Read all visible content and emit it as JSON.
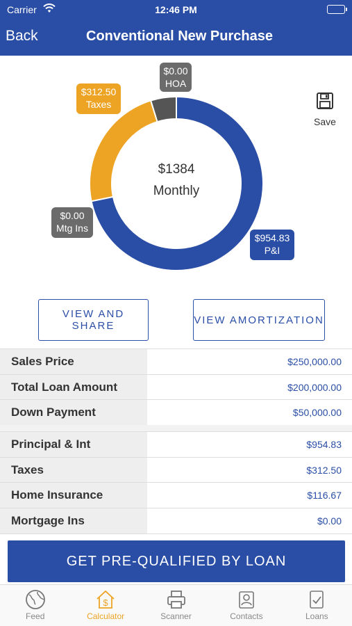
{
  "status_bar": {
    "carrier": "Carrier",
    "time": "12:46 PM"
  },
  "nav": {
    "back_label": "Back",
    "title": "Conventional New Purchase"
  },
  "chart_data": {
    "type": "pie",
    "title": "",
    "center_amount": "$1384",
    "center_label": "Monthly",
    "categories": [
      "P&I",
      "Taxes",
      "HOA",
      "Mtg Ins"
    ],
    "values": [
      954.83,
      312.5,
      0.0,
      0.0
    ],
    "value_labels": [
      "$954.83",
      "$312.50",
      "$0.00",
      "$0.00"
    ],
    "colors": [
      "#2a4ea6",
      "#eda324",
      "#6b6b6b",
      "#555555"
    ]
  },
  "save_label": "Save",
  "buttons": {
    "view_share": "VIEW AND SHARE",
    "view_amortization": "VIEW AMORTIZATION"
  },
  "loan_table": [
    {
      "label": "Sales Price",
      "value": "$250,000.00"
    },
    {
      "label": "Total Loan Amount",
      "value": "$200,000.00"
    },
    {
      "label": "Down Payment",
      "value": "$50,000.00"
    }
  ],
  "payment_table": [
    {
      "label": "Principal & Int",
      "value": "$954.83"
    },
    {
      "label": "Taxes",
      "value": "$312.50"
    },
    {
      "label": "Home Insurance",
      "value": "$116.67"
    },
    {
      "label": "Mortgage Ins",
      "value": "$0.00"
    }
  ],
  "cta_label": "GET PRE-QUALIFIED BY LOAN",
  "tabs": [
    {
      "label": "Feed",
      "icon": "globe-icon",
      "active": false
    },
    {
      "label": "Calculator",
      "icon": "house-dollar-icon",
      "active": true
    },
    {
      "label": "Scanner",
      "icon": "printer-icon",
      "active": false
    },
    {
      "label": "Contacts",
      "icon": "contacts-icon",
      "active": false
    },
    {
      "label": "Loans",
      "icon": "document-check-icon",
      "active": false
    }
  ],
  "colors": {
    "brand_blue": "#2a4ea6",
    "accent_orange": "#eda324"
  }
}
